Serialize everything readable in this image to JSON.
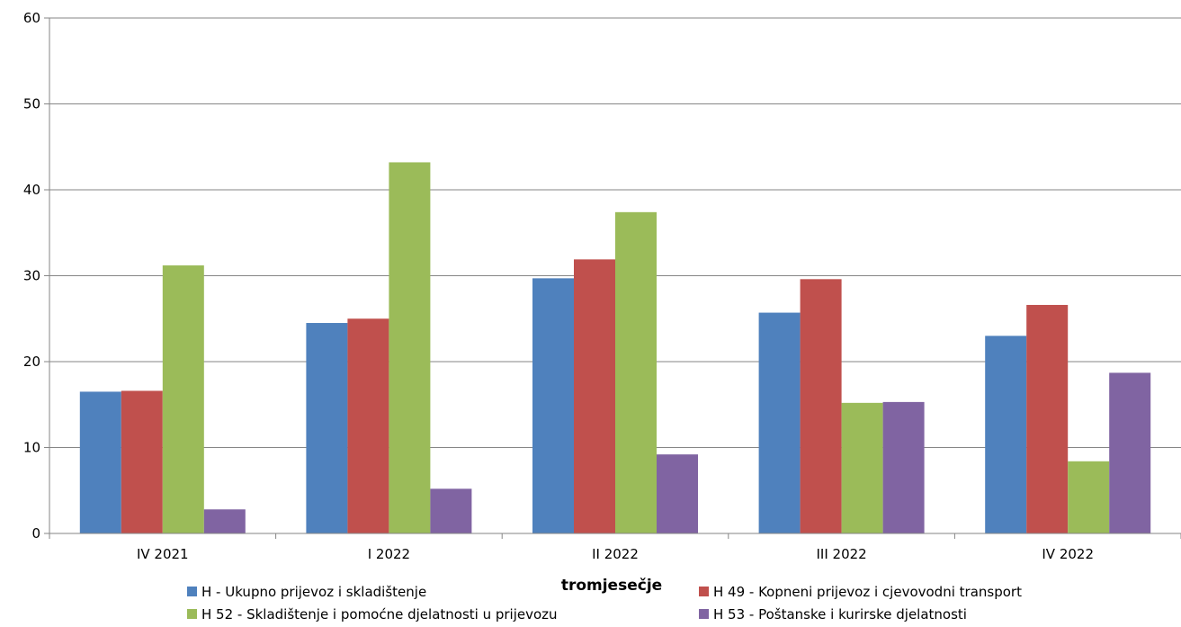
{
  "chart_data": {
    "type": "bar",
    "xlabel": "tromjesečje",
    "ylabel": "",
    "ylim": [
      0,
      60
    ],
    "yticks": [
      0,
      10,
      20,
      30,
      40,
      50,
      60
    ],
    "grid": true,
    "legend_position": "bottom",
    "categories": [
      "IV 2021",
      "I 2022",
      "II 2022",
      "III 2022",
      "IV 2022"
    ],
    "series": [
      {
        "name": "H - Ukupno prijevoz i skladištenje",
        "color": "#4F81BD",
        "values": [
          16.5,
          24.5,
          29.7,
          25.7,
          23.0
        ]
      },
      {
        "name": "H 49 - Kopneni prijevoz i cjevovodni transport",
        "color": "#C0504D",
        "values": [
          16.6,
          25.0,
          31.9,
          29.6,
          26.6
        ]
      },
      {
        "name": "H 52 - Skladištenje i pomoćne djelatnosti u prijevozu",
        "color": "#9BBB59",
        "values": [
          31.2,
          43.2,
          37.4,
          15.2,
          8.4
        ]
      },
      {
        "name": "H 53 - Poštanske i kurirske djelatnosti",
        "color": "#8064A2",
        "values": [
          2.8,
          5.2,
          9.2,
          15.3,
          18.7
        ]
      }
    ]
  }
}
